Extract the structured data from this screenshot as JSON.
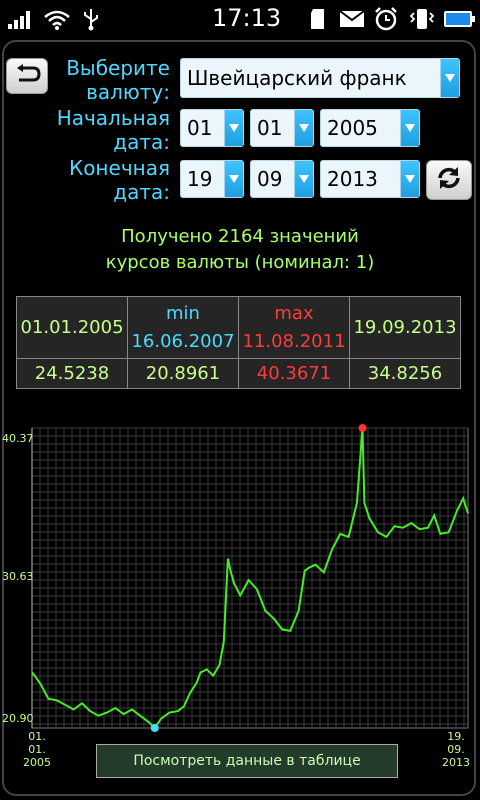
{
  "status_bar": {
    "time": "17:13",
    "icons": [
      "signal-icon",
      "wifi-icon",
      "usb-icon",
      "sd-card-icon",
      "mail-icon",
      "alarm-icon",
      "vibrate-icon",
      "battery-icon"
    ]
  },
  "form": {
    "currency_label": "Выберите\nвалюту:",
    "currency_value": "Швейцарский франк",
    "start_label": "Начальная\nдата:",
    "start_day": "01",
    "start_month": "01",
    "start_year": "2005",
    "end_label": "Конечная\nдата:",
    "end_day": "19",
    "end_month": "09",
    "end_year": "2013"
  },
  "summary": {
    "line1": "Получено 2164 значений",
    "line2": "курсов валюты (номинал: 1)"
  },
  "stats": {
    "start_date": "01.01.2005",
    "min_label": "min",
    "min_date": "16.06.2007",
    "max_label": "max",
    "max_date": "11.08.2011",
    "end_date": "19.09.2013",
    "start_value": "24.5238",
    "min_value": "20.8961",
    "max_value": "40.3671",
    "end_value": "34.8256"
  },
  "chart_data": {
    "type": "line",
    "x_start_label": "01.\n01.\n2005",
    "x_end_label": "19.\n09.\n2013",
    "y_tick_labels": [
      "40.37",
      "30.63",
      "20.90"
    ],
    "ylim": [
      20.9,
      40.37
    ],
    "grid": true,
    "line_color": "#44ee22",
    "min_marker_color": "#44ddff",
    "max_marker_color": "#ff3333",
    "series": [
      {
        "x": [
          "2005-01-01",
          "2005-03-01",
          "2005-05-01",
          "2005-07-01",
          "2005-09-01",
          "2005-11-01",
          "2006-01-01",
          "2006-03-01",
          "2006-05-01",
          "2006-07-01",
          "2006-09-01",
          "2006-11-01",
          "2007-01-01",
          "2007-03-01",
          "2007-05-01",
          "2007-06-16",
          "2007-08-01",
          "2007-10-01",
          "2007-12-01",
          "2008-01-15",
          "2008-03-01",
          "2008-04-15",
          "2008-05-15",
          "2008-07-01",
          "2008-08-15",
          "2008-10-01",
          "2008-11-01",
          "2008-12-01",
          "2008-12-20",
          "2009-01-15",
          "2009-03-01",
          "2009-05-01",
          "2009-07-01",
          "2009-09-01",
          "2009-11-01",
          "2010-01-01",
          "2010-03-01",
          "2010-05-01",
          "2010-06-15",
          "2010-07-15",
          "2010-09-01",
          "2010-11-01",
          "2011-01-01",
          "2011-03-01",
          "2011-05-01",
          "2011-07-01",
          "2011-08-11",
          "2011-08-25",
          "2011-10-01",
          "2011-12-01",
          "2012-02-01",
          "2012-04-01",
          "2012-06-01",
          "2012-08-01",
          "2012-10-01",
          "2012-12-01",
          "2013-01-15",
          "2013-03-01",
          "2013-05-01",
          "2013-07-01",
          "2013-08-15",
          "2013-09-19"
        ],
        "values": [
          24.52,
          23.8,
          22.8,
          22.7,
          22.4,
          22.1,
          22.5,
          22.0,
          21.7,
          21.9,
          22.2,
          21.8,
          22.1,
          21.7,
          21.3,
          20.9,
          21.5,
          21.9,
          22.0,
          22.3,
          23.2,
          23.8,
          24.5,
          24.7,
          24.3,
          25.0,
          26.5,
          31.9,
          31.1,
          30.3,
          29.5,
          30.5,
          29.9,
          28.5,
          28.0,
          27.3,
          27.2,
          28.5,
          31.1,
          31.3,
          31.5,
          31.0,
          32.5,
          33.5,
          33.3,
          35.5,
          40.37,
          35.5,
          34.5,
          33.6,
          33.3,
          34.0,
          33.9,
          34.2,
          33.8,
          33.9,
          34.7,
          33.5,
          33.6,
          35.0,
          35.8,
          34.83
        ]
      }
    ]
  },
  "buttons": {
    "view_table": "Посмотреть данные в таблице"
  }
}
